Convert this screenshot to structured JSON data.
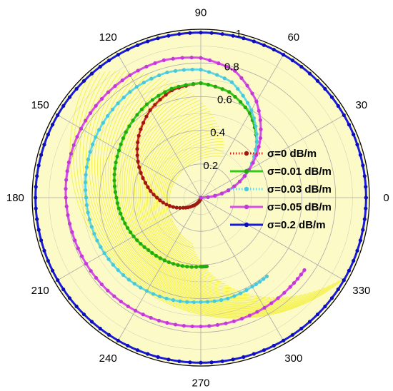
{
  "chart_data": {
    "type": "polar",
    "title": "",
    "angle_ticks": [
      "0",
      "30",
      "60",
      "90",
      "120",
      "150",
      "180",
      "210",
      "240",
      "270",
      "300",
      "330"
    ],
    "radial_ticks": [
      "0.2",
      "0.4",
      "0.6",
      "0.8",
      "1"
    ],
    "rlim": [
      0,
      1
    ],
    "grid": true,
    "legend_position": "right",
    "colors": {
      "grid": "#a8a8a8",
      "fill": "#f3ef3a",
      "outer_circle": "#000000"
    },
    "series": [
      {
        "name": "σ=0 dB/m",
        "color": "#c8261a",
        "marker_color": "#a01810",
        "line_style": "dotted",
        "theta_deg": [
          0,
          15,
          30,
          45,
          60,
          75,
          90,
          105,
          120,
          135,
          150,
          165,
          180,
          195,
          210,
          225,
          240,
          255,
          270
        ],
        "r": [
          0.0,
          0.17,
          0.33,
          0.47,
          0.58,
          0.65,
          0.68,
          0.66,
          0.6,
          0.52,
          0.43,
          0.34,
          0.26,
          0.19,
          0.12,
          0.07,
          0.035,
          0.012,
          0.0
        ]
      },
      {
        "name": "σ=0.01 dB/m",
        "color": "#33cc1a",
        "marker_color": "#22aa10",
        "line_style": "solid",
        "theta_deg": [
          0,
          15,
          30,
          45,
          60,
          75,
          90,
          105,
          120,
          135,
          150,
          165,
          180,
          195,
          210,
          225,
          240,
          255,
          270,
          275
        ],
        "r": [
          0.0,
          0.17,
          0.33,
          0.47,
          0.58,
          0.65,
          0.68,
          0.67,
          0.64,
          0.6,
          0.56,
          0.53,
          0.5,
          0.48,
          0.46,
          0.44,
          0.43,
          0.42,
          0.41,
          0.41
        ]
      },
      {
        "name": "σ=0.03 dB/m",
        "color": "#5ed6e6",
        "marker_color": "#48c8da",
        "line_style": "dotted",
        "theta_deg": [
          0,
          15,
          30,
          45,
          60,
          75,
          90,
          105,
          120,
          135,
          150,
          165,
          180,
          195,
          210,
          225,
          240,
          255,
          270,
          285,
          300,
          310
        ],
        "r": [
          0.0,
          0.17,
          0.33,
          0.47,
          0.6,
          0.71,
          0.76,
          0.77,
          0.76,
          0.74,
          0.72,
          0.7,
          0.68,
          0.67,
          0.66,
          0.65,
          0.64,
          0.63,
          0.62,
          0.62,
          0.61,
          0.61
        ]
      },
      {
        "name": "σ=0.05 dB/m",
        "color": "#d84ce8",
        "marker_color": "#c23ad6",
        "line_style": "solid",
        "theta_deg": [
          0,
          15,
          30,
          45,
          60,
          75,
          90,
          105,
          120,
          135,
          150,
          165,
          180,
          195,
          210,
          225,
          240,
          255,
          270,
          285,
          300,
          315,
          325
        ],
        "r": [
          0.0,
          0.17,
          0.33,
          0.5,
          0.66,
          0.78,
          0.83,
          0.845,
          0.84,
          0.83,
          0.82,
          0.81,
          0.8,
          0.79,
          0.785,
          0.78,
          0.775,
          0.77,
          0.765,
          0.76,
          0.755,
          0.75,
          0.75
        ]
      },
      {
        "name": "σ=0.2 dB/m",
        "color": "#1a1ad8",
        "marker_color": "#0e0eb8",
        "line_style": "solid",
        "theta_deg": [
          0,
          15,
          30,
          45,
          60,
          75,
          90,
          105,
          120,
          135,
          150,
          165,
          180,
          195,
          210,
          225,
          240,
          255,
          270,
          285,
          300,
          315,
          330,
          345,
          360
        ],
        "r": [
          0.98,
          0.98,
          0.98,
          0.98,
          0.98,
          0.98,
          0.98,
          0.98,
          0.98,
          0.98,
          0.98,
          0.98,
          0.98,
          0.98,
          0.98,
          0.98,
          0.98,
          0.98,
          0.98,
          0.98,
          0.98,
          0.98,
          0.98,
          0.98,
          0.98
        ]
      }
    ]
  }
}
